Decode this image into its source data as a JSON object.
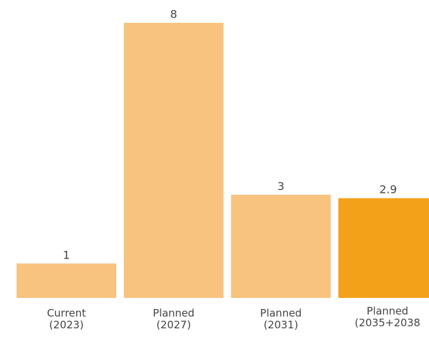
{
  "chart_data": {
    "type": "bar",
    "categories": [
      [
        "Current",
        "(2023)"
      ],
      [
        "Planned",
        "(2027)"
      ],
      [
        "Planned",
        "(2031)"
      ],
      [
        "Planned",
        "(2035+2038"
      ]
    ],
    "values": [
      1,
      8,
      3,
      2.9
    ],
    "value_labels": [
      "1",
      "8",
      "3",
      "2.9"
    ],
    "highlight_index": 3,
    "colors": {
      "bar": "#f8c37f",
      "highlight": "#f4a11a"
    },
    "ylim": [
      0,
      8
    ],
    "grid": false,
    "legend": "none",
    "title": "",
    "xlabel": "",
    "ylabel": ""
  }
}
